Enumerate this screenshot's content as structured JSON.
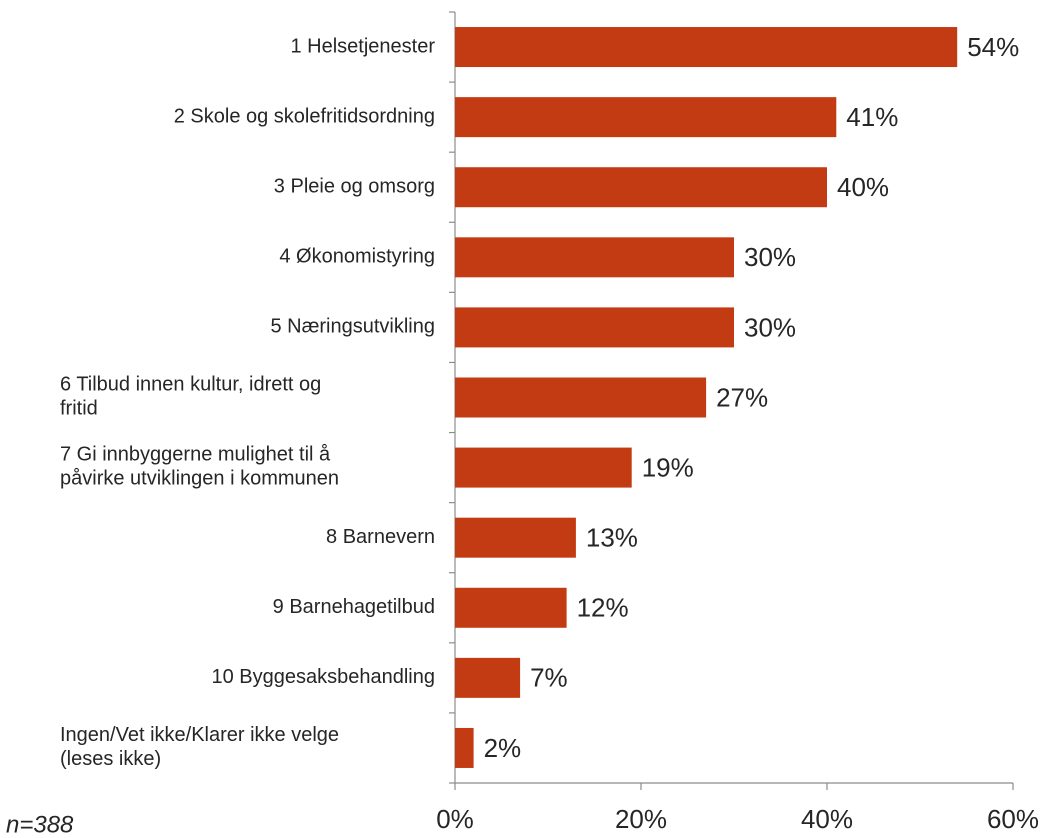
{
  "chart_data": {
    "type": "bar",
    "orientation": "horizontal",
    "categories": [
      "1 Helsetjenester",
      "2 Skole og skolefritidsordning",
      "3 Pleie og omsorg",
      "4 Økonomistyring",
      "5 Næringsutvikling",
      "6 Tilbud innen kultur, idrett og\nfritid",
      "7 Gi innbyggerne mulighet til å\npåvirke utviklingen i kommunen",
      "8 Barnevern",
      "9 Barnehagetilbud",
      "10 Byggesaksbehandling",
      "Ingen/Vet ikke/Klarer ikke velge\n(leses ikke)"
    ],
    "values": [
      54,
      41,
      40,
      30,
      30,
      27,
      19,
      13,
      12,
      7,
      2
    ],
    "value_labels": [
      "54%",
      "41%",
      "40%",
      "30%",
      "30%",
      "27%",
      "19%",
      "13%",
      "12%",
      "7%",
      "2%"
    ],
    "color": "#c23b12",
    "xlim": [
      0,
      60
    ],
    "xticks": [
      {
        "value": 0,
        "label": "0%"
      },
      {
        "value": 20,
        "label": "20%"
      },
      {
        "value": 40,
        "label": "40%"
      },
      {
        "value": 60,
        "label": "60%"
      }
    ],
    "note": "n=388"
  }
}
